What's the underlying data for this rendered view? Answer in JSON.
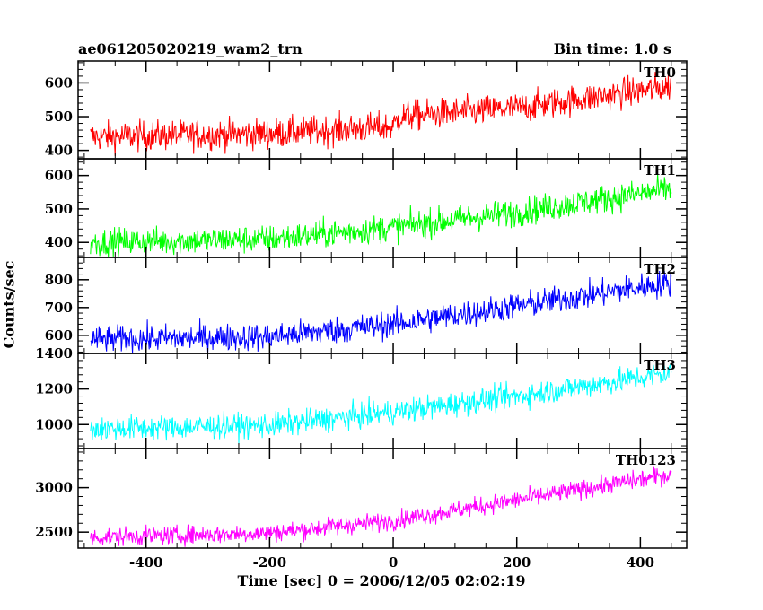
{
  "header": {
    "title_left": "ae061205020219_wam2_trn",
    "title_right": "Bin time: 1.0 s"
  },
  "axes": {
    "xlabel": "Time [sec] 0 = 2006/12/05 02:02:19",
    "ylabel": "Counts/sec"
  },
  "chart_data": [
    {
      "type": "line",
      "series_name": "TH0",
      "color": "#ff0000",
      "xlim": [
        -510,
        475
      ],
      "ylim": [
        375,
        665
      ],
      "yticks": [
        400,
        500,
        600
      ],
      "trend": [
        {
          "x": -490,
          "y": 440
        },
        {
          "x": -200,
          "y": 450
        },
        {
          "x": 0,
          "y": 470
        },
        {
          "x": 10,
          "y": 500
        },
        {
          "x": 200,
          "y": 525
        },
        {
          "x": 450,
          "y": 590
        }
      ],
      "noise": 32
    },
    {
      "type": "line",
      "series_name": "TH1",
      "color": "#00ff00",
      "xlim": [
        -510,
        475
      ],
      "ylim": [
        355,
        650
      ],
      "yticks": [
        400,
        500,
        600
      ],
      "trend": [
        {
          "x": -490,
          "y": 400
        },
        {
          "x": -200,
          "y": 410
        },
        {
          "x": 0,
          "y": 445
        },
        {
          "x": 200,
          "y": 490
        },
        {
          "x": 450,
          "y": 560
        }
      ],
      "noise": 30
    },
    {
      "type": "line",
      "series_name": "TH2",
      "color": "#0000ff",
      "xlim": [
        -510,
        475
      ],
      "ylim": [
        535,
        880
      ],
      "yticks": [
        600,
        700,
        800
      ],
      "trend": [
        {
          "x": -490,
          "y": 585
        },
        {
          "x": -200,
          "y": 595
        },
        {
          "x": 0,
          "y": 640
        },
        {
          "x": 200,
          "y": 705
        },
        {
          "x": 450,
          "y": 790
        }
      ],
      "noise": 35
    },
    {
      "type": "line",
      "series_name": "TH3",
      "color": "#00ffff",
      "xlim": [
        -510,
        475
      ],
      "ylim": [
        865,
        1400
      ],
      "yticks": [
        1000,
        1200,
        1400
      ],
      "trend": [
        {
          "x": -490,
          "y": 975
        },
        {
          "x": -200,
          "y": 995
        },
        {
          "x": 0,
          "y": 1070
        },
        {
          "x": 200,
          "y": 1160
        },
        {
          "x": 450,
          "y": 1290
        }
      ],
      "noise": 50
    },
    {
      "type": "line",
      "series_name": "TH0123",
      "color": "#ff00ff",
      "xlim": [
        -510,
        475
      ],
      "ylim": [
        2320,
        3440
      ],
      "yticks": [
        2500,
        3000
      ],
      "trend": [
        {
          "x": -490,
          "y": 2440
        },
        {
          "x": -200,
          "y": 2490
        },
        {
          "x": 0,
          "y": 2630
        },
        {
          "x": 200,
          "y": 2860
        },
        {
          "x": 450,
          "y": 3150
        }
      ],
      "noise": 75
    }
  ],
  "xticks": [
    -400,
    -200,
    0,
    200,
    400
  ]
}
